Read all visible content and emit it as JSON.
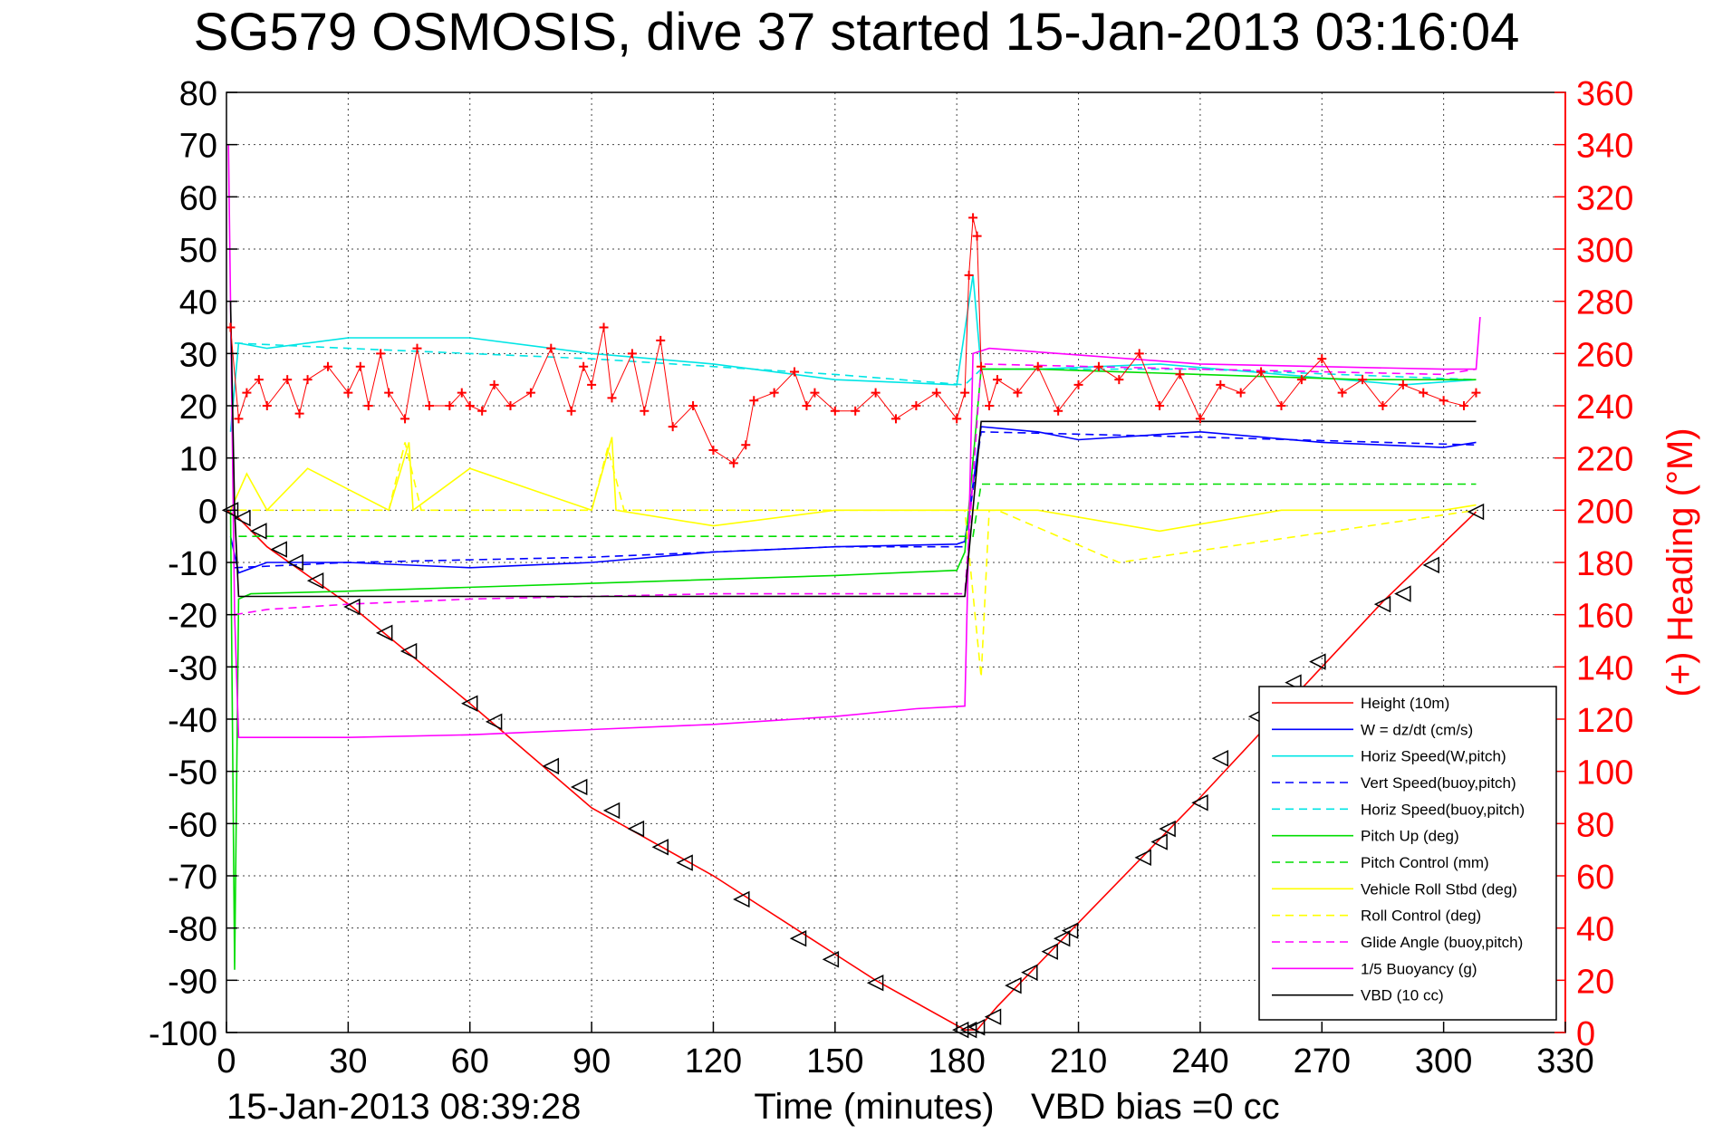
{
  "title": "SG579 OSMOSIS, dive 37 started 15-Jan-2013 03:16:04",
  "footer": {
    "timestamp": "15-Jan-2013 08:39:28",
    "vbd_bias": "VBD bias =0 cc"
  },
  "colors": {
    "height": "#ff0000",
    "w": "#0000ff",
    "horiz_speed": "#00e5e5",
    "pitch": "#00dd00",
    "roll": "#ffff00",
    "glide": "#ff00ff",
    "buoyancy": "#ff00ff",
    "vbd": "#000000",
    "heading": "#ff0000"
  },
  "chart_data": {
    "type": "line",
    "xlabel": "Time (minutes)",
    "ylabel": "",
    "y2label": "(+) Heading (°M)",
    "xlim": [
      0,
      330
    ],
    "ylim": [
      -100,
      80
    ],
    "y2lim": [
      0,
      360
    ],
    "xticks": [
      0,
      30,
      60,
      90,
      120,
      150,
      180,
      210,
      240,
      270,
      300,
      330
    ],
    "yticks": [
      80,
      70,
      60,
      50,
      40,
      30,
      20,
      10,
      0,
      -10,
      -20,
      -30,
      -40,
      -50,
      -60,
      -70,
      -80,
      -90,
      -100
    ],
    "y2ticks": [
      360,
      340,
      320,
      300,
      280,
      260,
      240,
      220,
      200,
      180,
      160,
      140,
      120,
      100,
      80,
      60,
      40,
      20,
      0
    ],
    "grid": true,
    "legend_position": "bottom-right",
    "series": [
      {
        "name": "Height (10m)",
        "style": "solid",
        "color": "#ff0000",
        "x": [
          0,
          3,
          10,
          31,
          60,
          90,
          120,
          150,
          160,
          182,
          185,
          190,
          210,
          240,
          270,
          285,
          308
        ],
        "y": [
          0,
          -1.5,
          -7,
          -18.5,
          -37,
          -57,
          -70,
          -85,
          -90,
          -99.5,
          -99.5,
          -95,
          -79,
          -55,
          -30,
          -17.5,
          -0.3
        ]
      },
      {
        "name": "W = dz/dt (cm/s)",
        "style": "solid",
        "color": "#0000ff",
        "x": [
          1,
          3,
          10,
          30,
          60,
          90,
          120,
          150,
          180,
          182,
          186,
          200,
          210,
          240,
          270,
          300,
          308
        ],
        "y": [
          -5,
          -12,
          -10,
          -10,
          -11,
          -10,
          -8,
          -7,
          -6.5,
          -6,
          16,
          15,
          13.5,
          15,
          13,
          12,
          13
        ]
      },
      {
        "name": "Horiz Speed(W,pitch)",
        "style": "solid",
        "color": "#00e5e5",
        "x": [
          1,
          3,
          10,
          30,
          60,
          90,
          120,
          150,
          180,
          184,
          186,
          200,
          230,
          260,
          290,
          308
        ],
        "y": [
          15,
          32,
          31,
          33,
          33,
          30,
          28,
          25,
          24,
          45,
          27,
          27,
          28,
          26,
          24,
          25
        ]
      },
      {
        "name": "Vert Speed(buoy,pitch)",
        "style": "dashed",
        "color": "#0000ff",
        "x": [
          2,
          30,
          90,
          150,
          182,
          186,
          240,
          308
        ],
        "y": [
          -11,
          -10,
          -9,
          -7,
          -7,
          15,
          14,
          12.5
        ]
      },
      {
        "name": "Horiz Speed(buoy,pitch)",
        "style": "dashed",
        "color": "#00e5e5",
        "x": [
          2,
          30,
          90,
          150,
          182,
          186,
          240,
          308
        ],
        "y": [
          32,
          31,
          29,
          26,
          24,
          27,
          27,
          25
        ]
      },
      {
        "name": "Pitch Up (deg)",
        "style": "solid",
        "color": "#00dd00",
        "x": [
          1,
          2,
          3,
          6,
          30,
          90,
          150,
          180,
          182,
          186,
          200,
          240,
          280,
          308
        ],
        "y": [
          0,
          -88,
          -17,
          -16,
          -15.5,
          -14,
          -12.5,
          -11.5,
          -8,
          27,
          27,
          26,
          25,
          25
        ]
      },
      {
        "name": "Pitch Control (mm)",
        "style": "dashed",
        "color": "#00dd00",
        "x": [
          3,
          180,
          184,
          186,
          308
        ],
        "y": [
          -5,
          -5,
          -5,
          5,
          5
        ]
      },
      {
        "name": "Vehicle Roll Stbd (deg)",
        "style": "solid",
        "color": "#ffff00",
        "x": [
          1,
          5,
          10,
          20,
          40,
          45,
          46,
          60,
          90,
          95,
          96,
          120,
          150,
          180,
          184,
          200,
          230,
          260,
          300,
          308
        ],
        "y": [
          0,
          7,
          0,
          8,
          0,
          13,
          0,
          8,
          0,
          14,
          0,
          -3,
          0,
          0,
          0,
          0,
          -4,
          0,
          0,
          1
        ]
      },
      {
        "name": "Roll Control (deg)",
        "style": "dashed",
        "color": "#ffff00",
        "x": [
          3,
          40,
          44,
          48,
          90,
          94,
          98,
          182,
          186,
          188,
          190,
          220,
          308
        ],
        "y": [
          0,
          0,
          13,
          0,
          0,
          12,
          0,
          0,
          -32,
          0,
          0,
          -10,
          0
        ]
      },
      {
        "name": "Glide Angle (buoy,pitch)",
        "style": "dashed",
        "color": "#ff00ff",
        "x": [
          2,
          10,
          30,
          60,
          90,
          120,
          150,
          180,
          182,
          186,
          240,
          300,
          308
        ],
        "y": [
          -20,
          -19,
          -18,
          -17,
          -16.5,
          -16,
          -16,
          -16,
          -16,
          28,
          27,
          26,
          27
        ]
      },
      {
        "name": "1/5 Buoyancy (g)",
        "style": "solid",
        "color": "#ff00ff",
        "x": [
          0.5,
          2,
          3,
          30,
          60,
          90,
          120,
          150,
          170,
          182,
          184,
          188,
          240,
          300,
          308,
          309
        ],
        "y": [
          70,
          -20,
          -43.5,
          -43.5,
          -43,
          -42,
          -41,
          -39.5,
          -38,
          -37.5,
          30,
          31,
          28,
          27,
          27,
          37
        ]
      },
      {
        "name": "VBD (10 cc)",
        "style": "solid",
        "color": "#000000",
        "x": [
          1,
          2,
          3,
          180,
          182,
          186,
          240,
          308
        ],
        "y": [
          40,
          0,
          -16.5,
          -16.5,
          -16.5,
          17,
          17,
          17
        ]
      }
    ],
    "heading": {
      "name": "(+) Heading (°M)",
      "marker": "+",
      "color": "#ff0000",
      "x": [
        1,
        3,
        5,
        8,
        10,
        15,
        18,
        20,
        25,
        30,
        33,
        35,
        38,
        40,
        44,
        47,
        50,
        55,
        58,
        60,
        63,
        66,
        70,
        75,
        80,
        85,
        88,
        90,
        93,
        95,
        100,
        103,
        107,
        110,
        115,
        120,
        125,
        128,
        130,
        135,
        140,
        143,
        145,
        150,
        155,
        160,
        165,
        170,
        175,
        180,
        182,
        183,
        184,
        185,
        186,
        188,
        190,
        195,
        200,
        205,
        210,
        215,
        220,
        225,
        230,
        235,
        240,
        245,
        250,
        255,
        260,
        265,
        270,
        275,
        280,
        285,
        290,
        295,
        300,
        305,
        308
      ],
      "y": [
        270,
        235,
        245,
        250,
        240,
        250,
        237,
        250,
        255,
        245,
        255,
        240,
        260,
        245,
        235,
        262,
        240,
        240,
        245,
        240,
        238,
        248,
        240,
        245,
        262,
        238,
        255,
        248,
        270,
        243,
        260,
        238,
        265,
        232,
        240,
        223,
        218,
        225,
        242,
        245,
        253,
        240,
        245,
        238,
        238,
        245,
        235,
        240,
        245,
        235,
        245,
        290,
        312,
        305,
        255,
        240,
        250,
        245,
        255,
        238,
        248,
        255,
        250,
        260,
        240,
        252,
        235,
        248,
        245,
        253,
        240,
        250,
        258,
        245,
        250,
        240,
        248,
        245,
        242,
        240,
        245
      ]
    },
    "markers": {
      "name": "Height (10m)",
      "symbol": "triangle",
      "x": [
        1,
        4,
        8,
        13,
        17,
        22,
        31,
        39,
        45,
        60,
        66,
        80,
        87,
        95,
        101,
        107,
        113,
        127,
        141,
        149,
        160,
        181,
        183,
        185,
        189,
        194,
        198,
        203,
        206,
        208,
        226,
        230,
        232,
        240,
        245,
        254,
        259,
        263,
        269,
        285,
        290,
        297,
        308
      ],
      "y": [
        0,
        -1.5,
        -4,
        -7.5,
        -10,
        -13.5,
        -18.5,
        -23.5,
        -27,
        -37,
        -40.5,
        -49,
        -53,
        -57.5,
        -61,
        -64.5,
        -67.5,
        -74.5,
        -82,
        -86,
        -90.5,
        -99.5,
        -99.5,
        -99,
        -97,
        -91,
        -88.5,
        -84.5,
        -82,
        -80.5,
        -66.5,
        -63.5,
        -61,
        -56,
        -47.5,
        -39.5,
        -36,
        -33,
        -29,
        -18,
        -16,
        -10.5,
        -0.3
      ]
    }
  }
}
